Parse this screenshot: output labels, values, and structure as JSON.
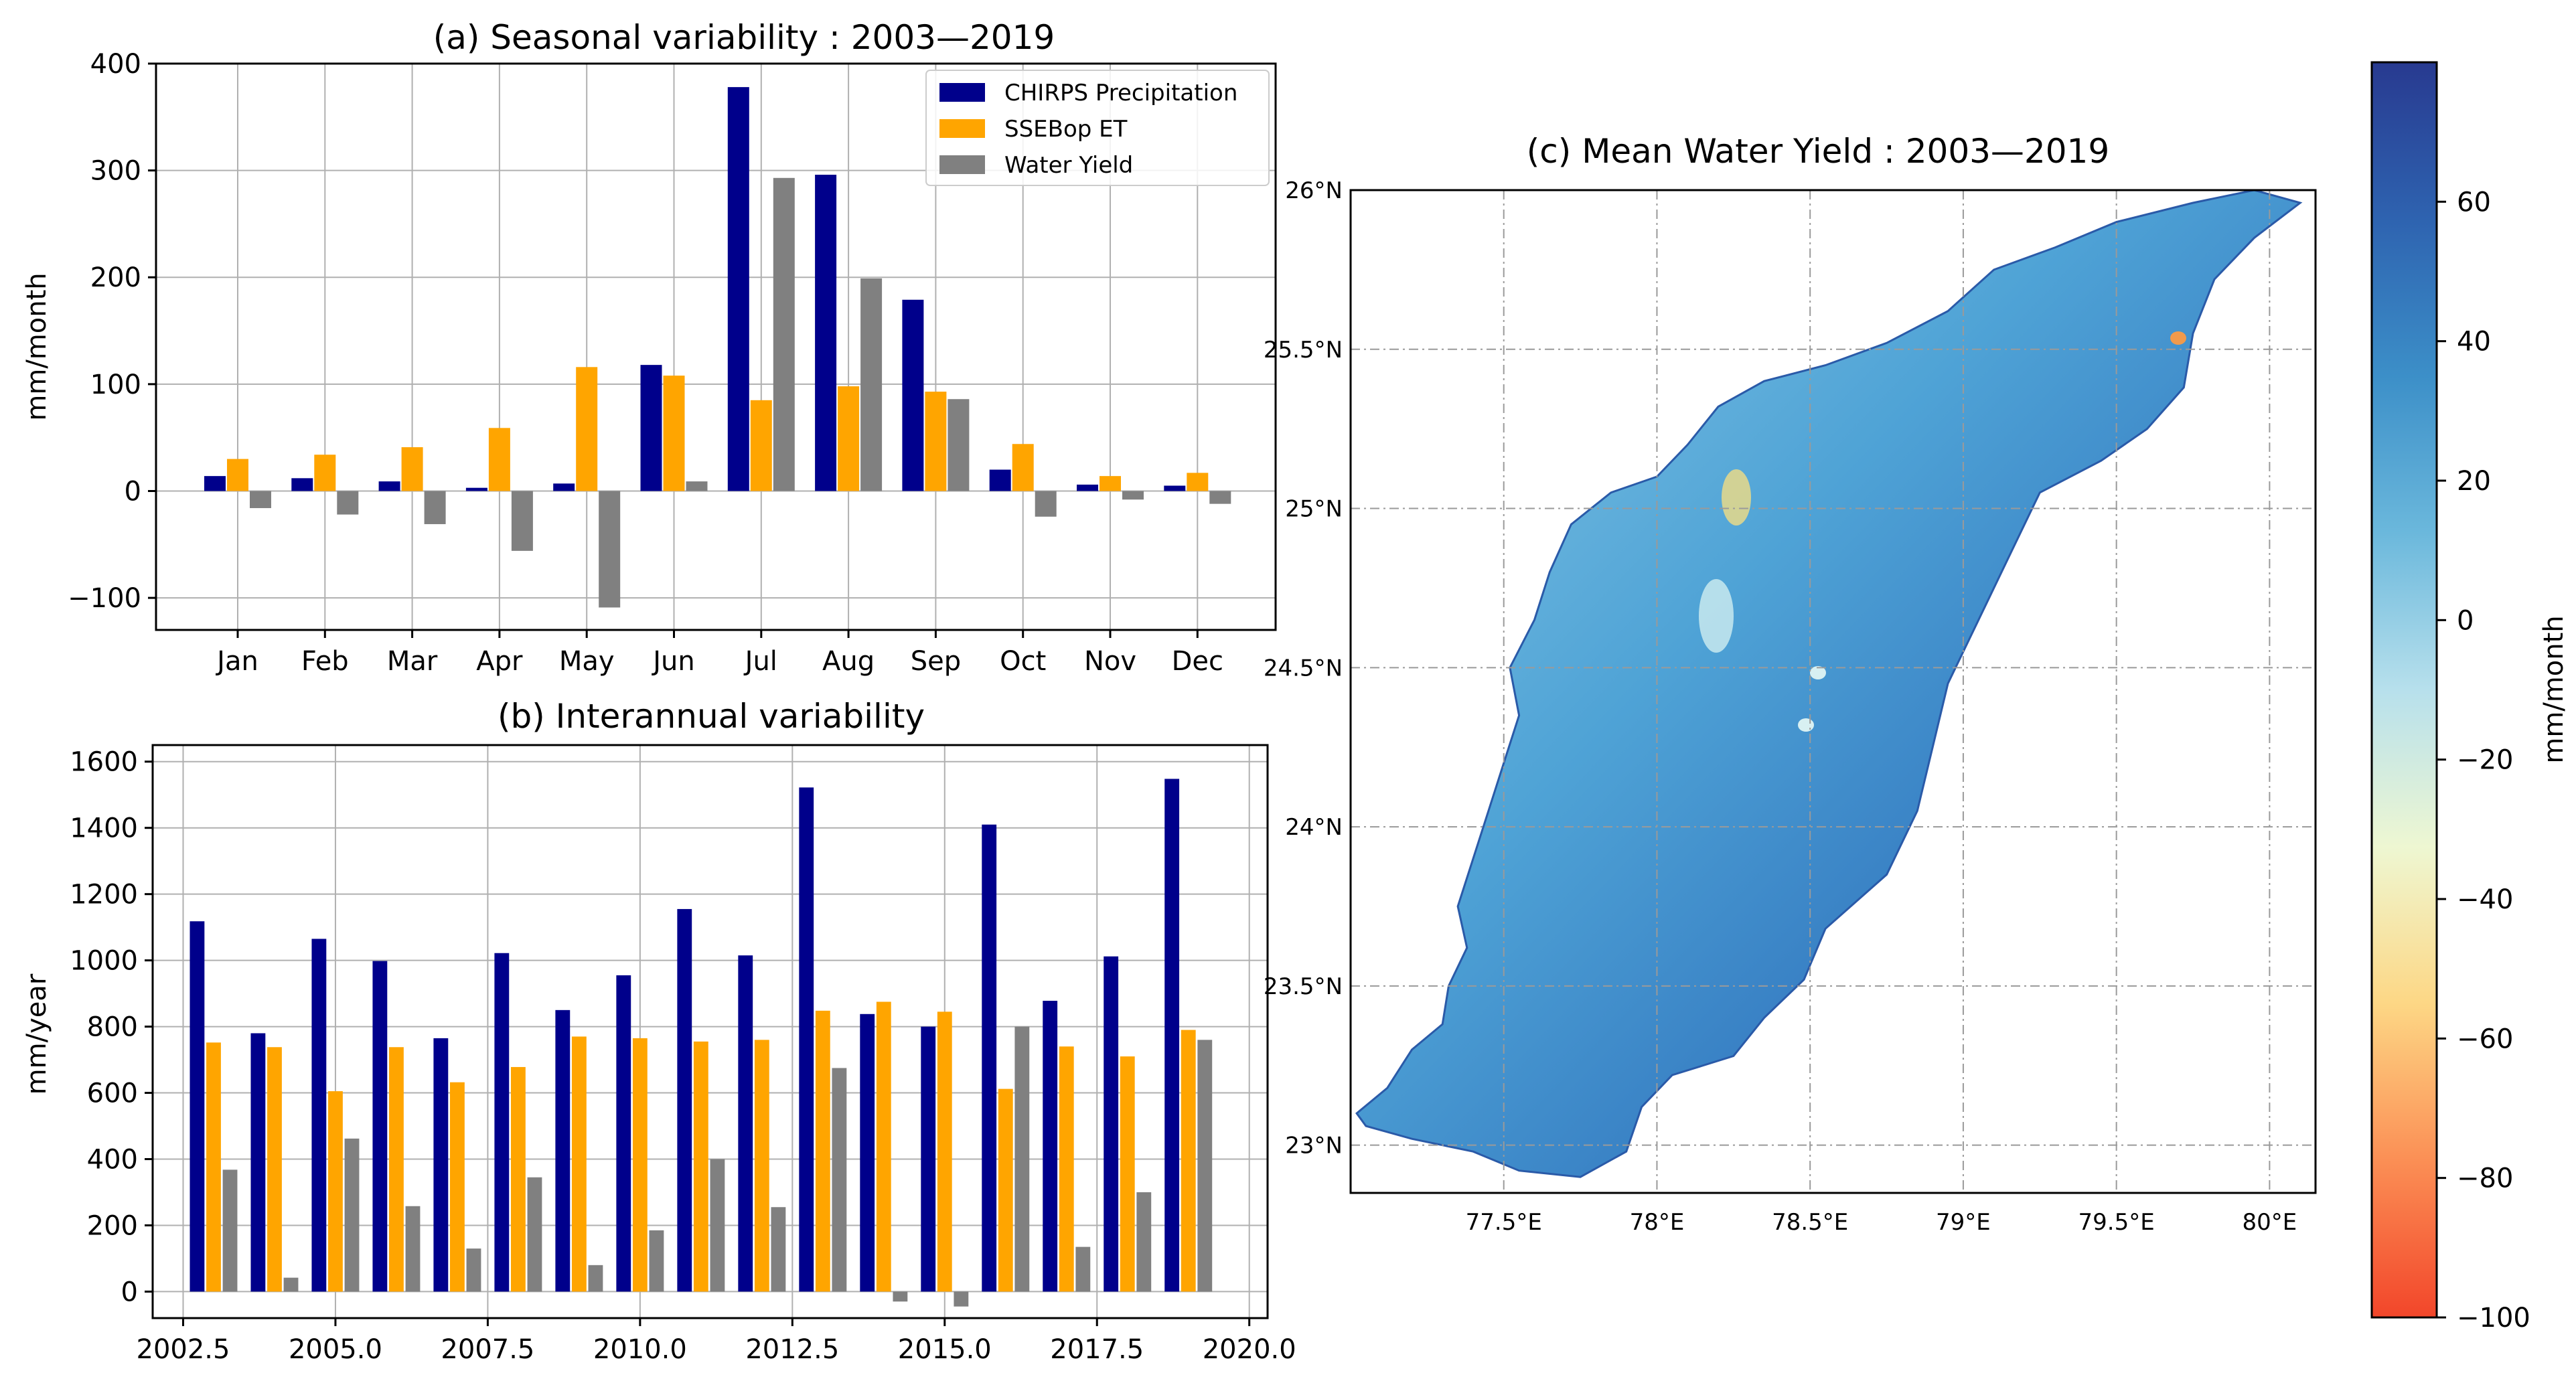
{
  "colors": {
    "precip": "#00008b",
    "et": "#ffa500",
    "yield": "#808080",
    "grid": "#b0b0b0",
    "ramp": [
      "#f2462a",
      "#fb8f55",
      "#fdd785",
      "#eef7d2",
      "#b7e0ec",
      "#6bb8dc",
      "#3c8fc8",
      "#2e63b0",
      "#283a90"
    ]
  },
  "chart_data": [
    {
      "id": "a",
      "type": "bar",
      "title": "(a) Seasonal variability : 2003—2019",
      "xlabel": "",
      "ylabel": "mm/month",
      "ylim": [
        -130,
        400
      ],
      "yticks": [
        -100,
        0,
        100,
        200,
        300,
        400
      ],
      "ytick_labels": [
        "−100",
        "0",
        "100",
        "200",
        "300",
        "400"
      ],
      "categories": [
        "Jan",
        "Feb",
        "Mar",
        "Apr",
        "May",
        "Jun",
        "Jul",
        "Aug",
        "Sep",
        "Oct",
        "Nov",
        "Dec"
      ],
      "grid": true,
      "legend": "top-right",
      "series": [
        {
          "name": "CHIRPS Precipitation",
          "color_key": "precip",
          "values": [
            14,
            12,
            9,
            3,
            7,
            118,
            378,
            296,
            179,
            20,
            6,
            5
          ]
        },
        {
          "name": "SSEBop ET",
          "color_key": "et",
          "values": [
            30,
            34,
            41,
            59,
            116,
            108,
            85,
            98,
            93,
            44,
            14,
            17
          ]
        },
        {
          "name": "Water Yield",
          "color_key": "yield",
          "values": [
            -16,
            -22,
            -31,
            -56,
            -109,
            9,
            293,
            199,
            86,
            -24,
            -8,
            -12
          ]
        }
      ]
    },
    {
      "id": "b",
      "type": "bar",
      "title": "(b) Interannual variability",
      "xlabel": "",
      "ylabel": "mm/year",
      "xlim": [
        2002.0,
        2020.3
      ],
      "xticks": [
        2002.5,
        2005.0,
        2007.5,
        2010.0,
        2012.5,
        2015.0,
        2017.5,
        2020.0
      ],
      "xtick_labels": [
        "2002.5",
        "2005.0",
        "2007.5",
        "2010.0",
        "2012.5",
        "2015.0",
        "2017.5",
        "2020.0"
      ],
      "ylim": [
        -80,
        1650
      ],
      "yticks": [
        0,
        200,
        400,
        600,
        800,
        1000,
        1200,
        1400,
        1600
      ],
      "ytick_labels": [
        "0",
        "200",
        "400",
        "600",
        "800",
        "1000",
        "1200",
        "1400",
        "1600"
      ],
      "x": [
        2003,
        2004,
        2005,
        2006,
        2007,
        2008,
        2009,
        2010,
        2011,
        2012,
        2013,
        2014,
        2015,
        2016,
        2017,
        2018,
        2019
      ],
      "grid": true,
      "series": [
        {
          "name": "CHIRPS Precipitation",
          "color_key": "precip",
          "values": [
            1118,
            780,
            1065,
            998,
            765,
            1022,
            850,
            955,
            1155,
            1015,
            1522,
            838,
            800,
            1410,
            878,
            1012,
            1548
          ]
        },
        {
          "name": "SSEBop ET",
          "color_key": "et",
          "values": [
            752,
            738,
            605,
            738,
            632,
            678,
            770,
            765,
            755,
            760,
            848,
            875,
            845,
            612,
            740,
            710,
            790
          ]
        },
        {
          "name": "Water Yield",
          "color_key": "yield",
          "values": [
            368,
            42,
            462,
            258,
            130,
            345,
            80,
            185,
            400,
            255,
            675,
            -30,
            -45,
            800,
            135,
            300,
            760
          ]
        }
      ]
    },
    {
      "id": "c",
      "type": "heatmap",
      "title": "(c) Mean Water Yield : 2003—2019",
      "xlim": [
        77.0,
        80.15
      ],
      "ylim": [
        22.85,
        26.0
      ],
      "xticks": [
        77.5,
        78.0,
        78.5,
        79.0,
        79.5,
        80.0
      ],
      "xtick_labels": [
        "77.5°E",
        "78°E",
        "78.5°E",
        "79°E",
        "79.5°E",
        "80°E"
      ],
      "yticks": [
        23.0,
        23.5,
        24.0,
        24.5,
        25.0,
        25.5,
        26.0
      ],
      "ytick_labels": [
        "23°N",
        "23.5°N",
        "24°N",
        "24.5°N",
        "25°N",
        "25.5°N",
        "26°N"
      ],
      "grid": "dashed",
      "colorbar": {
        "label": "mm/month",
        "range": [
          -100,
          80
        ],
        "ticks": [
          60,
          40,
          20,
          0,
          -20,
          -40,
          -60,
          -80,
          -100
        ],
        "tick_labels": [
          "60",
          "40",
          "20",
          "0",
          "−20",
          "−40",
          "−60",
          "−80",
          "−100"
        ]
      },
      "basin_outline": [
        [
          77.02,
          23.1
        ],
        [
          77.12,
          23.18
        ],
        [
          77.2,
          23.3
        ],
        [
          77.3,
          23.38
        ],
        [
          77.32,
          23.5
        ],
        [
          77.38,
          23.62
        ],
        [
          77.35,
          23.75
        ],
        [
          77.4,
          23.9
        ],
        [
          77.45,
          24.05
        ],
        [
          77.5,
          24.2
        ],
        [
          77.55,
          24.35
        ],
        [
          77.52,
          24.5
        ],
        [
          77.6,
          24.65
        ],
        [
          77.65,
          24.8
        ],
        [
          77.72,
          24.95
        ],
        [
          77.85,
          25.05
        ],
        [
          78.0,
          25.1
        ],
        [
          78.1,
          25.2
        ],
        [
          78.2,
          25.32
        ],
        [
          78.35,
          25.4
        ],
        [
          78.55,
          25.45
        ],
        [
          78.75,
          25.52
        ],
        [
          78.95,
          25.62
        ],
        [
          79.1,
          25.75
        ],
        [
          79.3,
          25.82
        ],
        [
          79.5,
          25.9
        ],
        [
          79.75,
          25.96
        ],
        [
          79.95,
          26.0
        ],
        [
          80.1,
          25.96
        ],
        [
          79.95,
          25.85
        ],
        [
          79.82,
          25.72
        ],
        [
          79.75,
          25.55
        ],
        [
          79.72,
          25.38
        ],
        [
          79.6,
          25.25
        ],
        [
          79.45,
          25.15
        ],
        [
          79.25,
          25.05
        ],
        [
          79.15,
          24.85
        ],
        [
          79.05,
          24.65
        ],
        [
          78.95,
          24.45
        ],
        [
          78.9,
          24.25
        ],
        [
          78.85,
          24.05
        ],
        [
          78.75,
          23.85
        ],
        [
          78.55,
          23.68
        ],
        [
          78.48,
          23.52
        ],
        [
          78.35,
          23.4
        ],
        [
          78.25,
          23.28
        ],
        [
          78.05,
          23.22
        ],
        [
          77.95,
          23.12
        ],
        [
          77.9,
          22.98
        ],
        [
          77.75,
          22.9
        ],
        [
          77.55,
          22.92
        ],
        [
          77.4,
          22.98
        ],
        [
          77.2,
          23.02
        ],
        [
          77.05,
          23.06
        ]
      ]
    }
  ]
}
